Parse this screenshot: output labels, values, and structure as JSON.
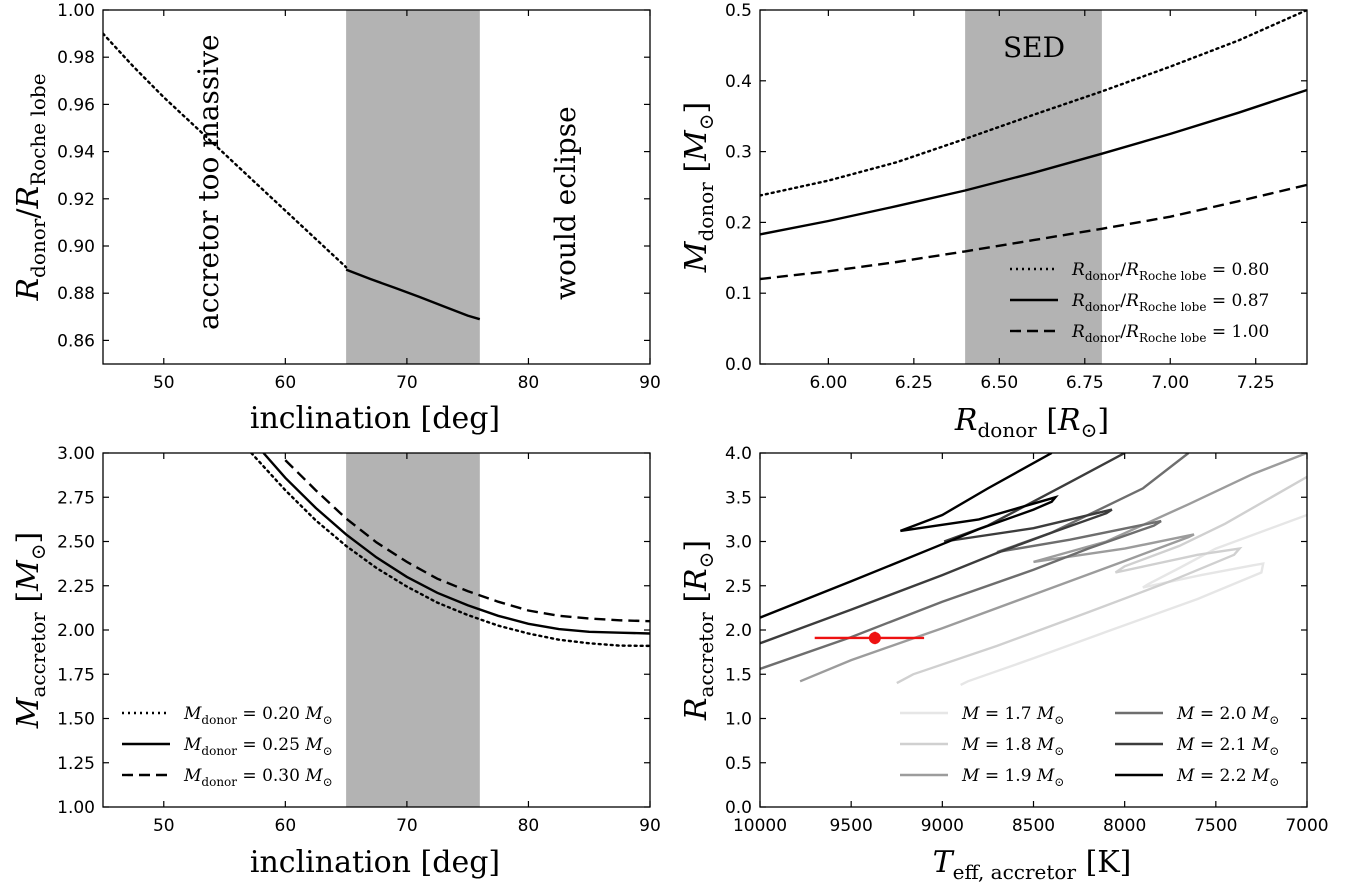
{
  "chart_data": [
    {
      "type": "line",
      "panel": "top-left",
      "xlabel": "inclination [deg]",
      "ylabel": "R_donor/R_Roche lobe",
      "xlim": [
        45,
        90
      ],
      "ylim": [
        0.85,
        1.0
      ],
      "xticks": [
        50,
        60,
        70,
        80,
        90
      ],
      "xtick_labels": [
        "50",
        "60",
        "70",
        "80",
        "90"
      ],
      "yticks": [
        0.86,
        0.88,
        0.9,
        0.92,
        0.94,
        0.96,
        0.98,
        1.0
      ],
      "ytick_labels": [
        "0.86",
        "0.88",
        "0.90",
        "0.92",
        "0.94",
        "0.96",
        "0.98",
        "1.00"
      ],
      "shaded_band": [
        65,
        76
      ],
      "series": [
        {
          "style": "dotted",
          "x": [
            45,
            47.5,
            50,
            52.5,
            55,
            57.5,
            60,
            62.5,
            65
          ],
          "y": [
            0.99,
            0.976,
            0.963,
            0.951,
            0.939,
            0.927,
            0.915,
            0.903,
            0.891
          ]
        },
        {
          "style": "solid",
          "x": [
            65,
            67,
            69,
            71,
            73,
            75,
            76
          ],
          "y": [
            0.89,
            0.886,
            0.8823,
            0.8785,
            0.8745,
            0.8705,
            0.869
          ]
        }
      ],
      "annotations": [
        "accretor too massive",
        "would eclipse"
      ],
      "grid": false
    },
    {
      "type": "line",
      "panel": "top-right",
      "xlabel": "R_donor [R_sun]",
      "ylabel": "M_donor [M_sun]",
      "xlim": [
        5.8,
        7.4
      ],
      "ylim": [
        0.0,
        0.5
      ],
      "xticks": [
        6.0,
        6.25,
        6.5,
        6.75,
        7.0,
        7.25
      ],
      "xtick_labels": [
        "6.00",
        "6.25",
        "6.50",
        "6.75",
        "7.00",
        "7.25"
      ],
      "yticks": [
        0.0,
        0.1,
        0.2,
        0.3,
        0.4,
        0.5
      ],
      "ytick_labels": [
        "0.0",
        "0.1",
        "0.2",
        "0.3",
        "0.4",
        "0.5"
      ],
      "shaded_band": [
        6.4,
        6.8
      ],
      "band_label": "SED",
      "legend_position": "lower-right",
      "series": [
        {
          "name": "R_donor/R_Roche lobe = 0.80",
          "style": "dotted",
          "x": [
            5.8,
            6.0,
            6.2,
            6.4,
            6.6,
            6.8,
            7.0,
            7.2,
            7.4
          ],
          "y": [
            0.238,
            0.259,
            0.285,
            0.318,
            0.352,
            0.385,
            0.42,
            0.457,
            0.5
          ]
        },
        {
          "name": "R_donor/R_Roche lobe = 0.87",
          "style": "solid",
          "x": [
            5.8,
            6.0,
            6.2,
            6.4,
            6.6,
            6.8,
            7.0,
            7.2,
            7.4
          ],
          "y": [
            0.183,
            0.202,
            0.223,
            0.245,
            0.27,
            0.297,
            0.325,
            0.355,
            0.387
          ]
        },
        {
          "name": "R_donor/R_Roche lobe = 1.00",
          "style": "dashed",
          "x": [
            5.8,
            6.0,
            6.2,
            6.4,
            6.6,
            6.8,
            7.0,
            7.2,
            7.4
          ],
          "y": [
            0.12,
            0.131,
            0.144,
            0.159,
            0.175,
            0.191,
            0.208,
            0.23,
            0.253
          ]
        }
      ],
      "legend_labels": [
        {
          "prefix": "R",
          "sub1": "donor",
          "sub2": "Roche lobe",
          "value": "= 0.80"
        },
        {
          "prefix": "R",
          "sub1": "donor",
          "sub2": "Roche lobe",
          "value": "= 0.87"
        },
        {
          "prefix": "R",
          "sub1": "donor",
          "sub2": "Roche lobe",
          "value": "= 1.00"
        }
      ],
      "grid": false
    },
    {
      "type": "line",
      "panel": "bottom-left",
      "xlabel": "inclination [deg]",
      "ylabel": "M_accretor [M_sun]",
      "xlim": [
        45,
        90
      ],
      "ylim": [
        1.0,
        3.0
      ],
      "xticks": [
        50,
        60,
        70,
        80,
        90
      ],
      "xtick_labels": [
        "50",
        "60",
        "70",
        "80",
        "90"
      ],
      "yticks": [
        1.0,
        1.25,
        1.5,
        1.75,
        2.0,
        2.25,
        2.5,
        2.75,
        3.0
      ],
      "ytick_labels": [
        "1.00",
        "1.25",
        "1.50",
        "1.75",
        "2.00",
        "2.25",
        "2.50",
        "2.75",
        "3.00"
      ],
      "shaded_band": [
        65,
        76
      ],
      "legend_position": "lower-left",
      "series": [
        {
          "name": "M_donor = 0.20 M_sun",
          "style": "dotted",
          "x": [
            57.2,
            60,
            62.5,
            65,
            67.5,
            70,
            72.5,
            75,
            77.5,
            80,
            82.5,
            85,
            87.5,
            90
          ],
          "y": [
            3.0,
            2.79,
            2.62,
            2.475,
            2.35,
            2.245,
            2.155,
            2.085,
            2.025,
            1.98,
            1.945,
            1.925,
            1.912,
            1.91
          ]
        },
        {
          "name": "M_donor = 0.25 M_sun",
          "style": "solid",
          "x": [
            58.2,
            60,
            62.5,
            65,
            67.5,
            70,
            72.5,
            75,
            77.5,
            80,
            82.5,
            85,
            87.5,
            90
          ],
          "y": [
            3.0,
            2.86,
            2.69,
            2.54,
            2.41,
            2.3,
            2.21,
            2.14,
            2.08,
            2.035,
            2.005,
            1.99,
            1.985,
            1.98
          ]
        },
        {
          "name": "M_donor = 0.30 M_sun",
          "style": "dashed",
          "x": [
            60,
            62.5,
            65,
            67.5,
            70,
            72.5,
            75,
            77.5,
            80,
            82.5,
            85,
            87.5,
            90
          ],
          "y": [
            2.96,
            2.79,
            2.63,
            2.495,
            2.385,
            2.29,
            2.22,
            2.16,
            2.11,
            2.08,
            2.065,
            2.055,
            2.05
          ]
        }
      ],
      "legend_labels": [
        {
          "prefix": "M",
          "sub": "donor",
          "value": "= 0.20",
          "unit": "M",
          "unit_sub": "⊙"
        },
        {
          "prefix": "M",
          "sub": "donor",
          "value": "= 0.25",
          "unit": "M",
          "unit_sub": "⊙"
        },
        {
          "prefix": "M",
          "sub": "donor",
          "value": "= 0.30",
          "unit": "M",
          "unit_sub": "⊙"
        }
      ],
      "grid": false
    },
    {
      "type": "line",
      "panel": "bottom-right",
      "xlabel": "T_eff, accretor [K]",
      "ylabel": "R_accretor [R_sun]",
      "xlim": [
        10000,
        7000
      ],
      "x_inverted": true,
      "ylim": [
        0.0,
        4.0
      ],
      "xticks": [
        10000,
        9500,
        9000,
        8500,
        8000,
        7500,
        7000
      ],
      "xtick_labels": [
        "10000",
        "9500",
        "9000",
        "8500",
        "8000",
        "7500",
        "7000"
      ],
      "yticks": [
        0.0,
        0.5,
        1.0,
        1.5,
        2.0,
        2.5,
        3.0,
        3.5,
        4.0
      ],
      "ytick_labels": [
        "0.0",
        "0.5",
        "1.0",
        "1.5",
        "2.0",
        "2.5",
        "3.0",
        "3.5",
        "4.0"
      ],
      "legend_position": "lower-right",
      "series": [
        {
          "name": "M = 1.7 M_sun",
          "color": "#e6e6e6",
          "x": [
            8900,
            8860,
            8500,
            8100,
            7600,
            7250,
            7240,
            7300,
            7580,
            7900,
            7870,
            7700,
            7500,
            7000
          ],
          "y": [
            1.38,
            1.42,
            1.68,
            1.98,
            2.35,
            2.65,
            2.75,
            2.73,
            2.62,
            2.48,
            2.52,
            2.7,
            2.92,
            3.3
          ]
        },
        {
          "name": "M = 1.8 M_sun",
          "color": "#d0d0d0",
          "x": [
            9250,
            9160,
            8700,
            8200,
            7750,
            7400,
            7370,
            7600,
            8050,
            8000,
            7700,
            7450,
            7000
          ],
          "y": [
            1.4,
            1.5,
            1.82,
            2.2,
            2.55,
            2.85,
            2.92,
            2.85,
            2.65,
            2.72,
            2.95,
            3.2,
            3.73
          ]
        },
        {
          "name": "M = 1.9 M_sun",
          "color": "#9c9c9c",
          "x": [
            9780,
            9500,
            9000,
            8500,
            8000,
            7650,
            7620,
            8000,
            8500,
            8100,
            7650,
            7300,
            7000
          ],
          "y": [
            1.42,
            1.66,
            2.02,
            2.4,
            2.78,
            3.05,
            3.08,
            2.92,
            2.77,
            3.0,
            3.42,
            3.76,
            4.0
          ]
        },
        {
          "name": "M = 2.0 M_sun",
          "color": "#6e6e6e",
          "x": [
            10000,
            9500,
            9000,
            8500,
            8200,
            7840,
            7800,
            8300,
            8700,
            8400,
            7900,
            7650
          ],
          "y": [
            1.56,
            1.92,
            2.32,
            2.68,
            2.92,
            3.18,
            3.23,
            3.02,
            2.88,
            3.1,
            3.6,
            4.0
          ]
        },
        {
          "name": "M = 2.1 M_sun",
          "color": "#3c3c3c",
          "x": [
            10000,
            9500,
            9000,
            8700,
            8400,
            8100,
            8070,
            8500,
            8990,
            8750,
            8300,
            8000
          ],
          "y": [
            1.85,
            2.23,
            2.62,
            2.87,
            3.1,
            3.32,
            3.36,
            3.15,
            3.0,
            3.18,
            3.67,
            4.0
          ]
        },
        {
          "name": "M = 2.2 M_sun",
          "color": "#000000",
          "x": [
            10000,
            9500,
            9000,
            8800,
            8500,
            8400,
            8380,
            8800,
            9230,
            9000,
            8750,
            8400
          ],
          "y": [
            2.14,
            2.55,
            2.97,
            3.14,
            3.36,
            3.45,
            3.5,
            3.25,
            3.12,
            3.3,
            3.6,
            4.0
          ]
        }
      ],
      "data_point": {
        "x": 9370,
        "y": 1.91,
        "xerr": [
          9700,
          9100
        ],
        "yerr": [
          1.84,
          1.98
        ],
        "color": "#ee1111"
      },
      "legend_labels": [
        {
          "prefix": "M",
          "value": "= 1.7",
          "unit": "M",
          "unit_sub": "⊙"
        },
        {
          "prefix": "M",
          "value": "= 1.8",
          "unit": "M",
          "unit_sub": "⊙"
        },
        {
          "prefix": "M",
          "value": "= 1.9",
          "unit": "M",
          "unit_sub": "⊙"
        },
        {
          "prefix": "M",
          "value": "= 2.0",
          "unit": "M",
          "unit_sub": "⊙"
        },
        {
          "prefix": "M",
          "value": "= 2.1",
          "unit": "M",
          "unit_sub": "⊙"
        },
        {
          "prefix": "M",
          "value": "= 2.2",
          "unit": "M",
          "unit_sub": "⊙"
        }
      ],
      "grid": false
    }
  ],
  "colors": {
    "band": "#b3b3b3",
    "axis": "#000000",
    "error_point": "#ee1111"
  }
}
